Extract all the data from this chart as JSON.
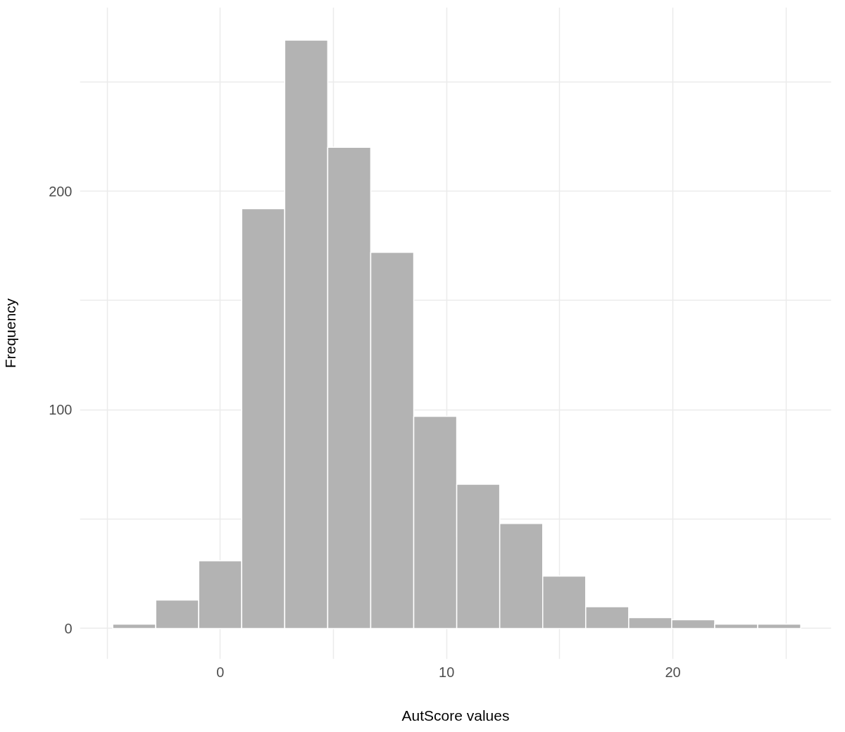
{
  "chart_data": {
    "type": "histogram",
    "xlabel": "AutScore values",
    "ylabel": "Frequency",
    "bins": [
      -4.75,
      -2.85,
      -0.95,
      0.95,
      2.85,
      4.75,
      6.65,
      8.55,
      10.45,
      12.35,
      14.25,
      16.15,
      18.05,
      19.95,
      21.85,
      23.75,
      25.65
    ],
    "values": [
      2,
      13,
      31,
      192,
      269,
      220,
      172,
      97,
      66,
      48,
      24,
      10,
      5,
      4,
      2,
      2
    ],
    "color": "#b3b3b3",
    "xlim": [
      -6.2,
      27
    ],
    "ylim": [
      -14,
      284
    ],
    "xticks": [
      {
        "value": -5,
        "label": null
      },
      0,
      {
        "value": 5,
        "label": null
      },
      10,
      {
        "value": 15,
        "label": null
      },
      20,
      {
        "value": 25,
        "label": null
      }
    ],
    "yticks": [
      0,
      {
        "value": 50,
        "label": null
      },
      100,
      {
        "value": 150,
        "label": null
      },
      200,
      {
        "value": 250,
        "label": null
      }
    ],
    "grid": true
  }
}
